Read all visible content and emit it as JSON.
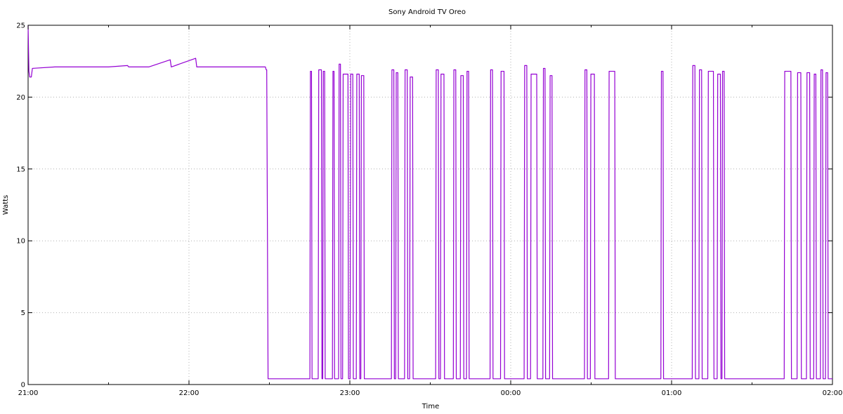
{
  "chart_data": {
    "type": "line",
    "title": "Sony Android TV Oreo",
    "xlabel": "Time",
    "ylabel": "Watts",
    "x_ticks": [
      "21:00",
      "22:00",
      "23:00",
      "00:00",
      "01:00",
      "02:00"
    ],
    "y_ticks": [
      0,
      5,
      10,
      15,
      20,
      25
    ],
    "xlim_minutes_after_2100": [
      0,
      300
    ],
    "ylim": [
      0,
      25
    ],
    "grid": true,
    "line_color": "#9400d3",
    "series": [
      {
        "points": [
          [
            0.0,
            25.0
          ],
          [
            0.3,
            21.8
          ],
          [
            0.6,
            21.4
          ],
          [
            1.2,
            21.4
          ],
          [
            1.6,
            22.0
          ],
          [
            10,
            22.1
          ],
          [
            20,
            22.1
          ],
          [
            30,
            22.1
          ],
          [
            37.1,
            22.2
          ],
          [
            37.5,
            22.1
          ],
          [
            45,
            22.1
          ],
          [
            53.0,
            22.6
          ],
          [
            53.4,
            22.1
          ],
          [
            62.5,
            22.7
          ],
          [
            62.9,
            22.1
          ],
          [
            70,
            22.1
          ],
          [
            80,
            22.1
          ],
          [
            88.5,
            22.1
          ],
          [
            88.8,
            21.9
          ],
          [
            89.0,
            21.9
          ],
          [
            89.5,
            0.4
          ],
          [
            95,
            0.4
          ],
          [
            100,
            0.4
          ],
          [
            105.1,
            0.4
          ],
          [
            105.3,
            21.8
          ],
          [
            105.7,
            21.8
          ],
          [
            105.9,
            0.4
          ],
          [
            108.2,
            0.4
          ],
          [
            108.4,
            21.9
          ],
          [
            109.4,
            21.9
          ],
          [
            109.6,
            0.4
          ],
          [
            109.9,
            0.4
          ],
          [
            110.1,
            21.8
          ],
          [
            110.6,
            21.8
          ],
          [
            110.8,
            0.4
          ],
          [
            113.5,
            0.4
          ],
          [
            113.7,
            21.8
          ],
          [
            114.1,
            21.8
          ],
          [
            114.3,
            0.4
          ],
          [
            115.8,
            0.4
          ],
          [
            116.0,
            22.3
          ],
          [
            116.5,
            22.3
          ],
          [
            116.7,
            0.4
          ],
          [
            117.3,
            0.4
          ],
          [
            117.5,
            21.6
          ],
          [
            119.3,
            21.6
          ],
          [
            119.5,
            0.4
          ],
          [
            120.1,
            0.4
          ],
          [
            120.3,
            21.6
          ],
          [
            121.1,
            21.6
          ],
          [
            121.3,
            0.4
          ],
          [
            122.4,
            0.4
          ],
          [
            122.6,
            21.6
          ],
          [
            123.5,
            21.6
          ],
          [
            123.7,
            0.4
          ],
          [
            124.1,
            0.4
          ],
          [
            124.3,
            21.5
          ],
          [
            125.2,
            21.5
          ],
          [
            125.4,
            0.4
          ],
          [
            130,
            0.4
          ],
          [
            135.5,
            0.4
          ],
          [
            135.7,
            21.9
          ],
          [
            136.4,
            21.9
          ],
          [
            136.6,
            0.4
          ],
          [
            137.1,
            0.4
          ],
          [
            137.3,
            21.7
          ],
          [
            137.9,
            21.7
          ],
          [
            138.1,
            0.4
          ],
          [
            140.4,
            0.4
          ],
          [
            140.6,
            21.9
          ],
          [
            141.4,
            21.9
          ],
          [
            141.6,
            0.4
          ],
          [
            142.3,
            0.4
          ],
          [
            142.5,
            21.4
          ],
          [
            143.4,
            21.4
          ],
          [
            143.6,
            0.4
          ],
          [
            150,
            0.4
          ],
          [
            152.0,
            0.4
          ],
          [
            152.2,
            21.9
          ],
          [
            153.0,
            21.9
          ],
          [
            153.2,
            0.4
          ],
          [
            153.8,
            0.4
          ],
          [
            154.0,
            21.6
          ],
          [
            155.1,
            21.6
          ],
          [
            155.3,
            0.4
          ],
          [
            158.6,
            0.4
          ],
          [
            158.8,
            21.9
          ],
          [
            159.5,
            21.9
          ],
          [
            159.7,
            0.4
          ],
          [
            161.2,
            0.4
          ],
          [
            161.4,
            21.5
          ],
          [
            162.3,
            21.5
          ],
          [
            162.5,
            0.4
          ],
          [
            163.5,
            0.4
          ],
          [
            163.7,
            21.8
          ],
          [
            164.3,
            21.8
          ],
          [
            164.5,
            0.4
          ],
          [
            170,
            0.4
          ],
          [
            172.3,
            0.4
          ],
          [
            172.5,
            21.9
          ],
          [
            173.2,
            21.9
          ],
          [
            173.4,
            0.4
          ],
          [
            176.2,
            0.4
          ],
          [
            176.4,
            21.8
          ],
          [
            177.5,
            21.8
          ],
          [
            177.7,
            0.4
          ],
          [
            182,
            0.4
          ],
          [
            185.0,
            0.4
          ],
          [
            185.2,
            22.2
          ],
          [
            186.0,
            22.2
          ],
          [
            186.2,
            0.4
          ],
          [
            187.4,
            0.4
          ],
          [
            187.6,
            21.6
          ],
          [
            189.7,
            21.6
          ],
          [
            189.9,
            0.4
          ],
          [
            192.0,
            0.4
          ],
          [
            192.2,
            22.0
          ],
          [
            192.8,
            22.0
          ],
          [
            193.0,
            0.4
          ],
          [
            194.5,
            0.4
          ],
          [
            194.7,
            21.5
          ],
          [
            195.4,
            21.5
          ],
          [
            195.6,
            0.4
          ],
          [
            200,
            0.4
          ],
          [
            207.5,
            0.4
          ],
          [
            207.7,
            21.9
          ],
          [
            208.4,
            21.9
          ],
          [
            208.6,
            0.4
          ],
          [
            209.7,
            0.4
          ],
          [
            209.9,
            21.6
          ],
          [
            211.2,
            21.6
          ],
          [
            211.4,
            0.4
          ],
          [
            216.5,
            0.4
          ],
          [
            216.7,
            21.8
          ],
          [
            218.8,
            21.8
          ],
          [
            219.0,
            0.4
          ],
          [
            225,
            0.4
          ],
          [
            230,
            0.4
          ],
          [
            236.0,
            0.4
          ],
          [
            236.2,
            21.8
          ],
          [
            236.8,
            21.8
          ],
          [
            237.0,
            0.4
          ],
          [
            247.7,
            0.4
          ],
          [
            247.9,
            22.2
          ],
          [
            248.7,
            22.2
          ],
          [
            248.9,
            0.4
          ],
          [
            250.2,
            0.4
          ],
          [
            250.4,
            21.9
          ],
          [
            251.2,
            21.9
          ],
          [
            251.4,
            0.4
          ],
          [
            253.5,
            0.4
          ],
          [
            253.7,
            21.8
          ],
          [
            255.6,
            21.8
          ],
          [
            255.8,
            0.4
          ],
          [
            257.0,
            0.4
          ],
          [
            257.2,
            21.6
          ],
          [
            258.2,
            21.6
          ],
          [
            258.4,
            0.4
          ],
          [
            258.8,
            0.4
          ],
          [
            259.0,
            21.8
          ],
          [
            259.6,
            21.8
          ],
          [
            259.8,
            0.4
          ],
          [
            265,
            0.4
          ],
          [
            270,
            0.4
          ],
          [
            275,
            0.4
          ],
          [
            282.0,
            0.4
          ],
          [
            282.2,
            21.8
          ],
          [
            284.5,
            21.8
          ],
          [
            284.7,
            0.4
          ],
          [
            286.8,
            0.4
          ],
          [
            287.0,
            21.7
          ],
          [
            288.2,
            21.7
          ],
          [
            288.4,
            0.4
          ],
          [
            290.3,
            0.4
          ],
          [
            290.5,
            21.7
          ],
          [
            291.5,
            21.7
          ],
          [
            291.7,
            0.4
          ],
          [
            293.0,
            0.4
          ],
          [
            293.2,
            21.6
          ],
          [
            293.8,
            21.6
          ],
          [
            294.0,
            0.4
          ],
          [
            295.5,
            0.4
          ],
          [
            295.7,
            21.9
          ],
          [
            296.3,
            21.9
          ],
          [
            296.5,
            0.4
          ],
          [
            297.4,
            0.4
          ],
          [
            297.6,
            21.7
          ],
          [
            298.2,
            21.7
          ],
          [
            298.4,
            0.4
          ],
          [
            300.0,
            0.4
          ]
        ]
      }
    ]
  }
}
